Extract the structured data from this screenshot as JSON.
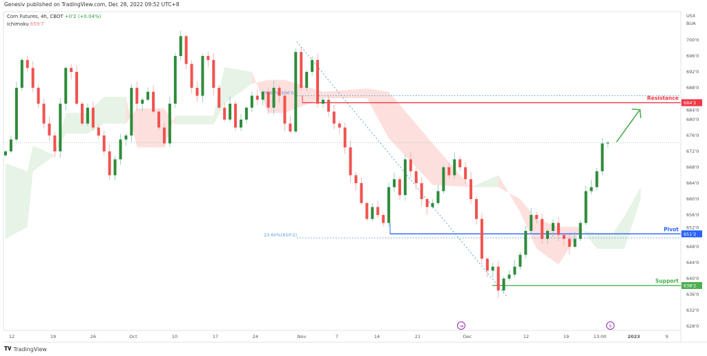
{
  "header": {
    "published": "Genesiv published on TradingView.com, Dec 28, 2022 09:52 UTC+8",
    "symbol": "Corn Futures, 4h, CBOT",
    "change": "+0'2 (+0.04%)",
    "indicator": "Ichimoku",
    "indicator_value": "659'7"
  },
  "footer": {
    "logo_mark": "TV",
    "logo_text": "TradingView"
  },
  "colors": {
    "up": "#2e8b3a",
    "down": "#f05350",
    "cloud_up": "#e6f3e6",
    "cloud_down": "#fde0de",
    "resistance": "#f23645",
    "pivot": "#2962ff",
    "support": "#4caf50",
    "fib": "#5b9be0",
    "arrow": "#4caf50",
    "event": "#9c27b0"
  },
  "chart_data": {
    "type": "candlestick",
    "title": "Corn Futures, 4h, CBOT",
    "currency_labels": [
      "USX",
      "BUA"
    ],
    "ylim": [
      626,
      704
    ],
    "y_ticks": [
      "700'0",
      "696'0",
      "692'0",
      "688'0",
      "684'0",
      "680'0",
      "676'0",
      "672'0",
      "668'0",
      "664'0",
      "660'0",
      "656'0",
      "652'0",
      "648'0",
      "644'0",
      "640'0",
      "636'0",
      "632'0",
      "628'0"
    ],
    "y_tick_values": [
      700,
      696,
      692,
      688,
      684,
      680,
      676,
      672,
      668,
      664,
      660,
      656,
      652,
      648,
      644,
      640,
      636,
      632,
      628
    ],
    "x_ticks": [
      "12",
      "19",
      "26",
      "Oct",
      "10",
      "17",
      "24",
      "Nov",
      "7",
      "14",
      "21",
      "Dec",
      "12",
      "19",
      "13:00",
      "2023",
      "9"
    ],
    "closes": [
      672,
      675,
      688,
      695,
      693,
      688,
      684,
      679,
      676,
      672,
      684,
      693,
      692,
      684,
      679,
      683,
      678,
      676,
      672,
      666,
      670,
      675,
      676,
      688,
      684,
      685,
      687,
      682,
      678,
      674,
      684,
      696,
      701,
      694,
      688,
      686,
      696,
      695,
      688,
      683,
      680,
      684,
      678,
      680,
      683,
      686,
      685,
      687,
      683,
      688,
      686,
      679,
      677,
      697,
      688,
      692,
      695,
      684,
      685,
      682,
      679,
      678,
      673,
      666,
      664,
      659,
      655,
      658,
      656,
      654,
      663,
      665,
      661,
      670,
      667,
      664,
      660,
      658,
      659,
      662,
      668,
      666,
      670,
      668,
      665,
      660,
      655,
      645,
      642,
      643,
      637,
      640,
      641,
      643,
      646,
      652,
      656,
      655,
      650,
      652,
      654,
      651,
      650,
      648,
      650,
      654,
      662,
      663,
      667,
      674,
      674.2
    ],
    "last_price": 674.2,
    "ichimoku_cloud": [
      {
        "i": 0,
        "a": 669,
        "b": 650
      },
      {
        "i": 4,
        "a": 667,
        "b": 653
      },
      {
        "i": 5,
        "a": 673.5,
        "b": 667
      },
      {
        "i": 9,
        "a": 671,
        "b": 671
      },
      {
        "i": 11,
        "a": 681.7,
        "b": 676.5
      },
      {
        "i": 15,
        "a": 681.7,
        "b": 676.5
      },
      {
        "i": 18,
        "a": 685.7,
        "b": 679
      },
      {
        "i": 22,
        "a": 685.7,
        "b": 679
      },
      {
        "i": 24,
        "a": 673,
        "b": 682.8
      },
      {
        "i": 29,
        "a": 673,
        "b": 682.8
      },
      {
        "i": 31,
        "a": 681,
        "b": 678.8
      },
      {
        "i": 38,
        "a": 681,
        "b": 678.8
      },
      {
        "i": 40,
        "a": 693.2,
        "b": 684
      },
      {
        "i": 45,
        "a": 692,
        "b": 689
      },
      {
        "i": 48,
        "a": 681.7,
        "b": 690
      },
      {
        "i": 51,
        "a": 681.7,
        "b": 690
      },
      {
        "i": 58,
        "a": 685.4,
        "b": 687
      },
      {
        "i": 66,
        "a": 685.4,
        "b": 687.8
      },
      {
        "i": 70,
        "a": 675.3,
        "b": 687
      },
      {
        "i": 78,
        "a": 663.6,
        "b": 674
      },
      {
        "i": 85,
        "a": 663,
        "b": 663
      },
      {
        "i": 90,
        "a": 666,
        "b": 663
      },
      {
        "i": 94,
        "a": 656.7,
        "b": 660
      },
      {
        "i": 97,
        "a": 647.5,
        "b": 655
      },
      {
        "i": 101,
        "a": 643.5,
        "b": 653
      },
      {
        "i": 105,
        "a": 652,
        "b": 653
      },
      {
        "i": 108,
        "a": 651.5,
        "b": 647.5
      },
      {
        "i": 111,
        "a": 651.5,
        "b": 647.5
      },
      {
        "i": 113,
        "a": 655.6,
        "b": 647.5
      },
      {
        "i": 116,
        "a": 663,
        "b": 660
      }
    ],
    "levels": [
      {
        "name": "Resistance",
        "price": 684.25,
        "tag": "684'2",
        "color_key": "resistance"
      },
      {
        "name": "Pivot",
        "price": 651.25,
        "tag": "651'2",
        "color_key": "pivot"
      },
      {
        "name": "Support",
        "price": 638.25,
        "tag": "638'2",
        "color_key": "support"
      }
    ],
    "fibonacci": [
      {
        "label": "78.60%(686'0)",
        "price": 686
      },
      {
        "label": "23.60%(650'2)",
        "price": 650.25
      }
    ],
    "trendline": {
      "from_price": 699.6,
      "to_price": 635.3
    },
    "projection_arrow": {
      "from_price": 674.2,
      "to_price": 683
    },
    "events": [
      "split-icon",
      "lightning-icon"
    ]
  }
}
